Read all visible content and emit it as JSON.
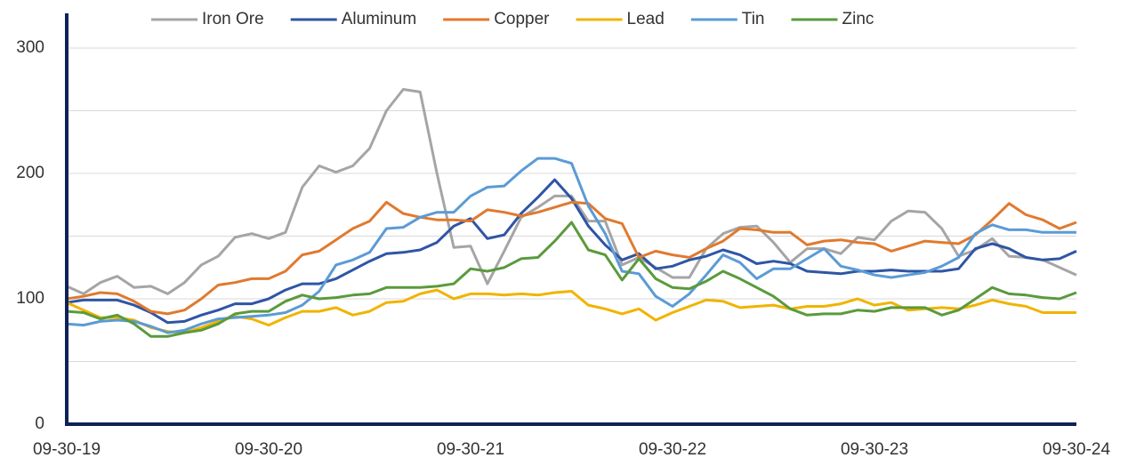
{
  "chart_data": {
    "type": "line",
    "categories": [
      "09-30-19",
      null,
      null,
      null,
      null,
      null,
      null,
      null,
      null,
      null,
      null,
      null,
      "09-30-20",
      null,
      null,
      null,
      null,
      null,
      null,
      null,
      null,
      null,
      null,
      null,
      "09-30-21",
      null,
      null,
      null,
      null,
      null,
      null,
      null,
      null,
      null,
      null,
      null,
      "09-30-22",
      null,
      null,
      null,
      null,
      null,
      null,
      null,
      null,
      null,
      null,
      null,
      "09-30-23",
      null,
      null,
      null,
      null,
      null,
      null,
      null,
      null,
      null,
      null,
      null,
      "09-30-24"
    ],
    "ylim": [
      0,
      300
    ],
    "yticks": [
      0,
      100,
      200,
      300
    ],
    "minor_yticks": [
      50,
      150,
      250
    ],
    "grid": true,
    "legend": "top",
    "series": [
      {
        "name": "Iron Ore",
        "color": "#a5a5a5",
        "values": [
          110,
          104,
          113,
          118,
          109,
          110,
          104,
          113,
          127,
          134,
          149,
          152,
          148,
          153,
          189,
          206,
          201,
          206,
          220,
          250,
          267,
          265,
          200,
          141,
          142,
          112,
          138,
          165,
          173,
          182,
          182,
          162,
          162,
          127,
          133,
          125,
          117,
          117,
          140,
          152,
          157,
          158,
          145,
          129,
          140,
          140,
          136,
          149,
          147,
          162,
          170,
          169,
          156,
          134,
          139,
          148,
          134,
          133,
          131,
          125,
          119
        ]
      },
      {
        "name": "Aluminum",
        "color": "#2f55a4",
        "values": [
          97,
          99,
          99,
          99,
          95,
          89,
          81,
          82,
          87,
          91,
          96,
          96,
          100,
          107,
          112,
          112,
          116,
          123,
          130,
          136,
          137,
          139,
          145,
          158,
          164,
          148,
          151,
          168,
          181,
          195,
          180,
          158,
          143,
          131,
          136,
          124,
          126,
          131,
          134,
          139,
          135,
          128,
          130,
          128,
          122,
          121,
          120,
          122,
          122,
          123,
          122,
          122,
          122,
          124,
          140,
          144,
          140,
          133,
          131,
          132,
          138
        ]
      },
      {
        "name": "Copper",
        "color": "#e07a2f",
        "values": [
          100,
          102,
          105,
          104,
          98,
          90,
          88,
          91,
          100,
          111,
          113,
          116,
          116,
          122,
          135,
          138,
          147,
          156,
          162,
          177,
          168,
          165,
          163,
          163,
          162,
          171,
          169,
          166,
          169,
          173,
          177,
          176,
          164,
          160,
          133,
          138,
          135,
          133,
          140,
          146,
          156,
          155,
          153,
          153,
          143,
          146,
          147,
          145,
          144,
          138,
          142,
          146,
          145,
          144,
          151,
          163,
          176,
          167,
          163,
          156,
          161
        ]
      },
      {
        "name": "Lead",
        "color": "#f0b400",
        "values": [
          97,
          91,
          85,
          85,
          83,
          77,
          74,
          73,
          77,
          82,
          86,
          84,
          79,
          85,
          90,
          90,
          93,
          87,
          90,
          97,
          98,
          104,
          107,
          100,
          104,
          104,
          103,
          104,
          103,
          105,
          106,
          95,
          92,
          88,
          92,
          83,
          89,
          94,
          99,
          98,
          93,
          94,
          95,
          92,
          94,
          94,
          96,
          100,
          95,
          97,
          91,
          92,
          93,
          92,
          95,
          99,
          96,
          94,
          89,
          89,
          89
        ]
      },
      {
        "name": "Tin",
        "color": "#5b9bd5",
        "values": [
          80,
          79,
          82,
          83,
          82,
          78,
          73,
          75,
          80,
          84,
          85,
          86,
          87,
          89,
          95,
          106,
          127,
          131,
          137,
          156,
          157,
          165,
          169,
          169,
          182,
          189,
          190,
          202,
          212,
          212,
          208,
          174,
          152,
          122,
          120,
          102,
          94,
          104,
          119,
          135,
          129,
          116,
          124,
          124,
          132,
          140,
          126,
          123,
          119,
          117,
          119,
          121,
          126,
          133,
          152,
          159,
          155,
          155,
          153,
          153,
          153
        ]
      },
      {
        "name": "Zinc",
        "color": "#5a9a3c",
        "values": [
          90,
          89,
          84,
          87,
          80,
          70,
          70,
          73,
          75,
          80,
          88,
          90,
          90,
          98,
          103,
          100,
          101,
          103,
          104,
          109,
          109,
          109,
          110,
          112,
          124,
          122,
          125,
          132,
          133,
          146,
          161,
          139,
          135,
          115,
          132,
          116,
          109,
          108,
          114,
          122,
          116,
          109,
          102,
          92,
          87,
          88,
          88,
          91,
          90,
          93,
          93,
          93,
          87,
          91,
          100,
          109,
          104,
          103,
          101,
          100,
          105
        ]
      }
    ]
  }
}
